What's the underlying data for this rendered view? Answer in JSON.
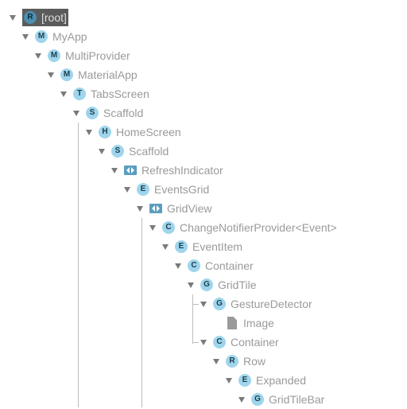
{
  "tree": {
    "root": {
      "badge": "R",
      "label": "[root]"
    },
    "nodes": [
      {
        "badge": "M",
        "label": "MyApp"
      },
      {
        "badge": "M",
        "label": "MultiProvider"
      },
      {
        "badge": "M",
        "label": "MaterialApp"
      },
      {
        "badge": "T",
        "label": "TabsScreen"
      },
      {
        "badge": "S",
        "label": "Scaffold"
      },
      {
        "badge": "H",
        "label": "HomeScreen"
      },
      {
        "badge": "S",
        "label": "Scaffold"
      },
      {
        "icon": "widget-icon",
        "label": "RefreshIndicator"
      },
      {
        "badge": "E",
        "label": "EventsGrid"
      },
      {
        "icon": "widget-icon",
        "label": "GridView"
      },
      {
        "badge": "C",
        "label": "ChangeNotifierProvider<Event>"
      },
      {
        "badge": "E",
        "label": "EventItem"
      },
      {
        "badge": "C",
        "label": "Container"
      },
      {
        "badge": "G",
        "label": "GridTile"
      },
      {
        "badge": "G",
        "label": "GestureDetector"
      },
      {
        "icon": "file-icon",
        "label": "Image"
      },
      {
        "badge": "C",
        "label": "Container"
      },
      {
        "badge": "R",
        "label": "Row"
      },
      {
        "badge": "E",
        "label": "Expanded"
      },
      {
        "badge": "G",
        "label": "GridTileBar"
      }
    ]
  },
  "colors": {
    "badge_bg": "#9fd5ec",
    "selected_bg": "#5b5b5b",
    "label": "#9a9a9a",
    "guide": "#bdbdbd"
  }
}
